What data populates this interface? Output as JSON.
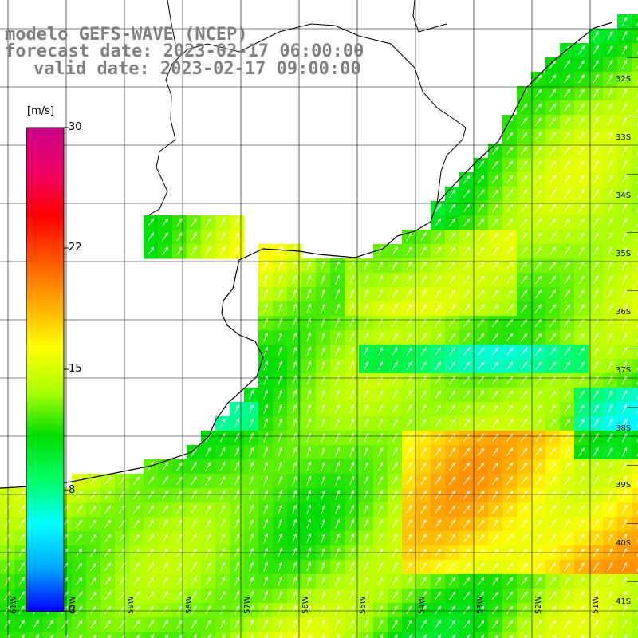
{
  "title": {
    "line1": "modelo GEFS-WAVE (NCEP)",
    "line2": "forecast date: 2023-02-17 06:00:00",
    "line3": "valid date: 2023-02-17 09:00:00"
  },
  "colorbar": {
    "unit": "[m/s]",
    "ticks": [
      "30",
      "22",
      "15",
      "8",
      "0"
    ],
    "stops": [
      "#0000ff",
      "#00aaff",
      "#00ffff",
      "#00ff66",
      "#00dd00",
      "#aaff00",
      "#ffff00",
      "#ffaa00",
      "#ff5500",
      "#ff0000",
      "#ee0066",
      "#cc0088"
    ]
  },
  "lat_labels": [
    "32S",
    "33S",
    "34S",
    "35S",
    "36S",
    "37S",
    "38S",
    "39S",
    "40S",
    "41S"
  ],
  "lon_labels": [
    "61W",
    "60W",
    "59W",
    "58W",
    "57W",
    "56W",
    "55W",
    "54W",
    "53W",
    "52W",
    "51W"
  ],
  "colors": {
    "land": "#ffffff",
    "grid": "#000000",
    "coast": "#000000",
    "arrow": "#ffffff"
  },
  "field": {
    "variable": "wind speed",
    "arrow_direction": "northeast",
    "calm_zone": "cyan band near 37S and off Mar del Plata",
    "strong_zone": "orange cells around 38S-39S, 53W-51W"
  }
}
